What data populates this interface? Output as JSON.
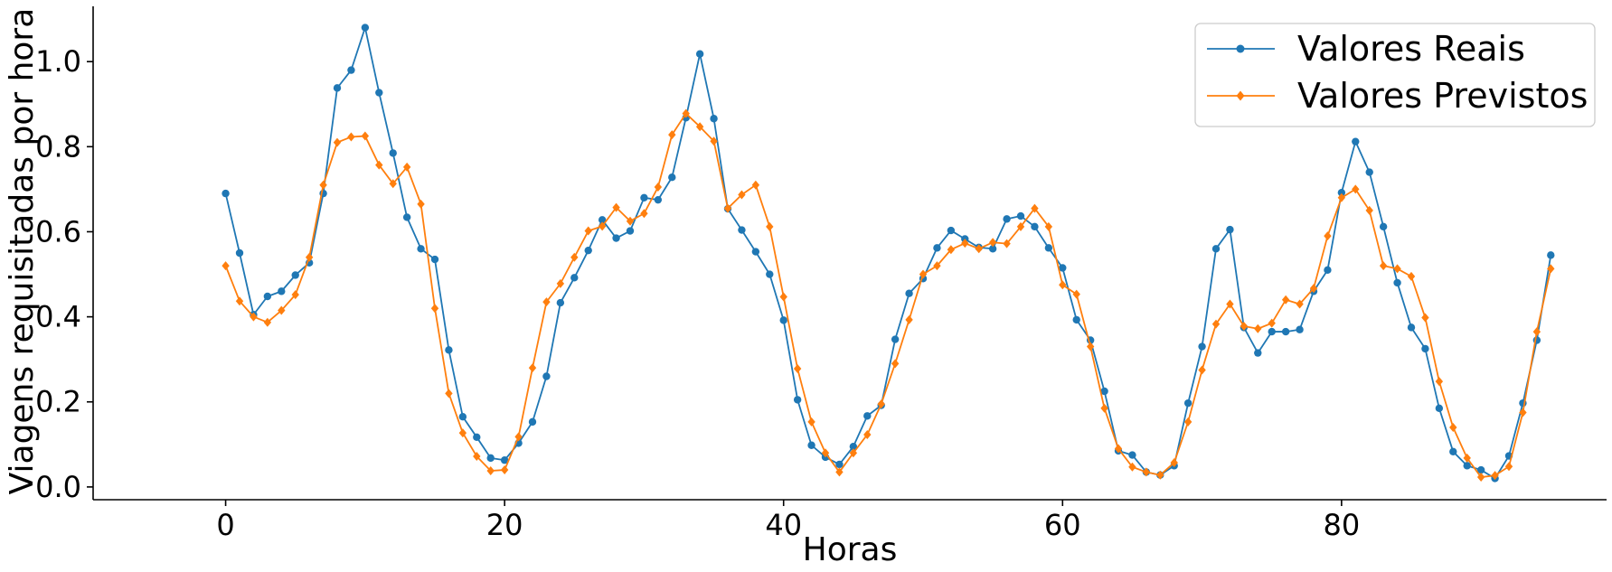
{
  "chart_data": {
    "type": "line",
    "title": "",
    "xlabel": "Horas",
    "ylabel": "Viagens requisitadas por hora",
    "xlim": [
      -9.5,
      99
    ],
    "ylim": [
      -0.03,
      1.13
    ],
    "xticks": [
      0,
      20,
      40,
      60,
      80
    ],
    "yticks": [
      0.0,
      0.2,
      0.4,
      0.6,
      0.8,
      1.0
    ],
    "xtick_labels": [
      "0",
      "20",
      "40",
      "60",
      "80"
    ],
    "ytick_labels": [
      "0.0",
      "0.2",
      "0.4",
      "0.6",
      "0.8",
      "1.0"
    ],
    "grid": false,
    "legend_position": "top-right",
    "series": [
      {
        "name": "Valores Reais",
        "color": "#1f77b4",
        "marker": "circle",
        "values": [
          0.69,
          0.55,
          0.405,
          0.448,
          0.46,
          0.498,
          0.527,
          0.69,
          0.938,
          0.98,
          1.08,
          0.927,
          0.785,
          0.634,
          0.56,
          0.535,
          0.322,
          0.165,
          0.117,
          0.068,
          0.063,
          0.103,
          0.153,
          0.26,
          0.433,
          0.492,
          0.556,
          0.628,
          0.585,
          0.602,
          0.68,
          0.675,
          0.728,
          0.868,
          1.018,
          0.866,
          0.654,
          0.604,
          0.553,
          0.5,
          0.392,
          0.205,
          0.098,
          0.07,
          0.053,
          0.095,
          0.167,
          0.192,
          0.347,
          0.455,
          0.49,
          0.562,
          0.603,
          0.583,
          0.563,
          0.56,
          0.63,
          0.637,
          0.612,
          0.562,
          0.515,
          0.393,
          0.345,
          0.225,
          0.085,
          0.075,
          0.035,
          0.028,
          0.05,
          0.197,
          0.33,
          0.56,
          0.605,
          0.375,
          0.315,
          0.365,
          0.365,
          0.37,
          0.46,
          0.51,
          0.692,
          0.812,
          0.74,
          0.612,
          0.48,
          0.375,
          0.325,
          0.185,
          0.083,
          0.05,
          0.04,
          0.02,
          0.073,
          0.197,
          0.345,
          0.545
        ]
      },
      {
        "name": "Valores Previstos",
        "color": "#ff7f0e",
        "marker": "diamond",
        "values": [
          0.52,
          0.437,
          0.4,
          0.387,
          0.415,
          0.452,
          0.54,
          0.71,
          0.81,
          0.823,
          0.825,
          0.757,
          0.713,
          0.752,
          0.665,
          0.42,
          0.22,
          0.127,
          0.072,
          0.038,
          0.04,
          0.118,
          0.28,
          0.435,
          0.478,
          0.54,
          0.602,
          0.613,
          0.657,
          0.625,
          0.643,
          0.705,
          0.828,
          0.878,
          0.847,
          0.813,
          0.655,
          0.687,
          0.71,
          0.612,
          0.447,
          0.278,
          0.153,
          0.08,
          0.035,
          0.08,
          0.123,
          0.195,
          0.29,
          0.393,
          0.5,
          0.52,
          0.558,
          0.573,
          0.56,
          0.575,
          0.572,
          0.612,
          0.655,
          0.612,
          0.475,
          0.453,
          0.33,
          0.185,
          0.09,
          0.047,
          0.035,
          0.028,
          0.057,
          0.153,
          0.275,
          0.383,
          0.43,
          0.378,
          0.372,
          0.385,
          0.44,
          0.43,
          0.467,
          0.59,
          0.68,
          0.7,
          0.65,
          0.52,
          0.513,
          0.495,
          0.398,
          0.248,
          0.14,
          0.068,
          0.023,
          0.027,
          0.048,
          0.175,
          0.365,
          0.513
        ]
      }
    ]
  }
}
